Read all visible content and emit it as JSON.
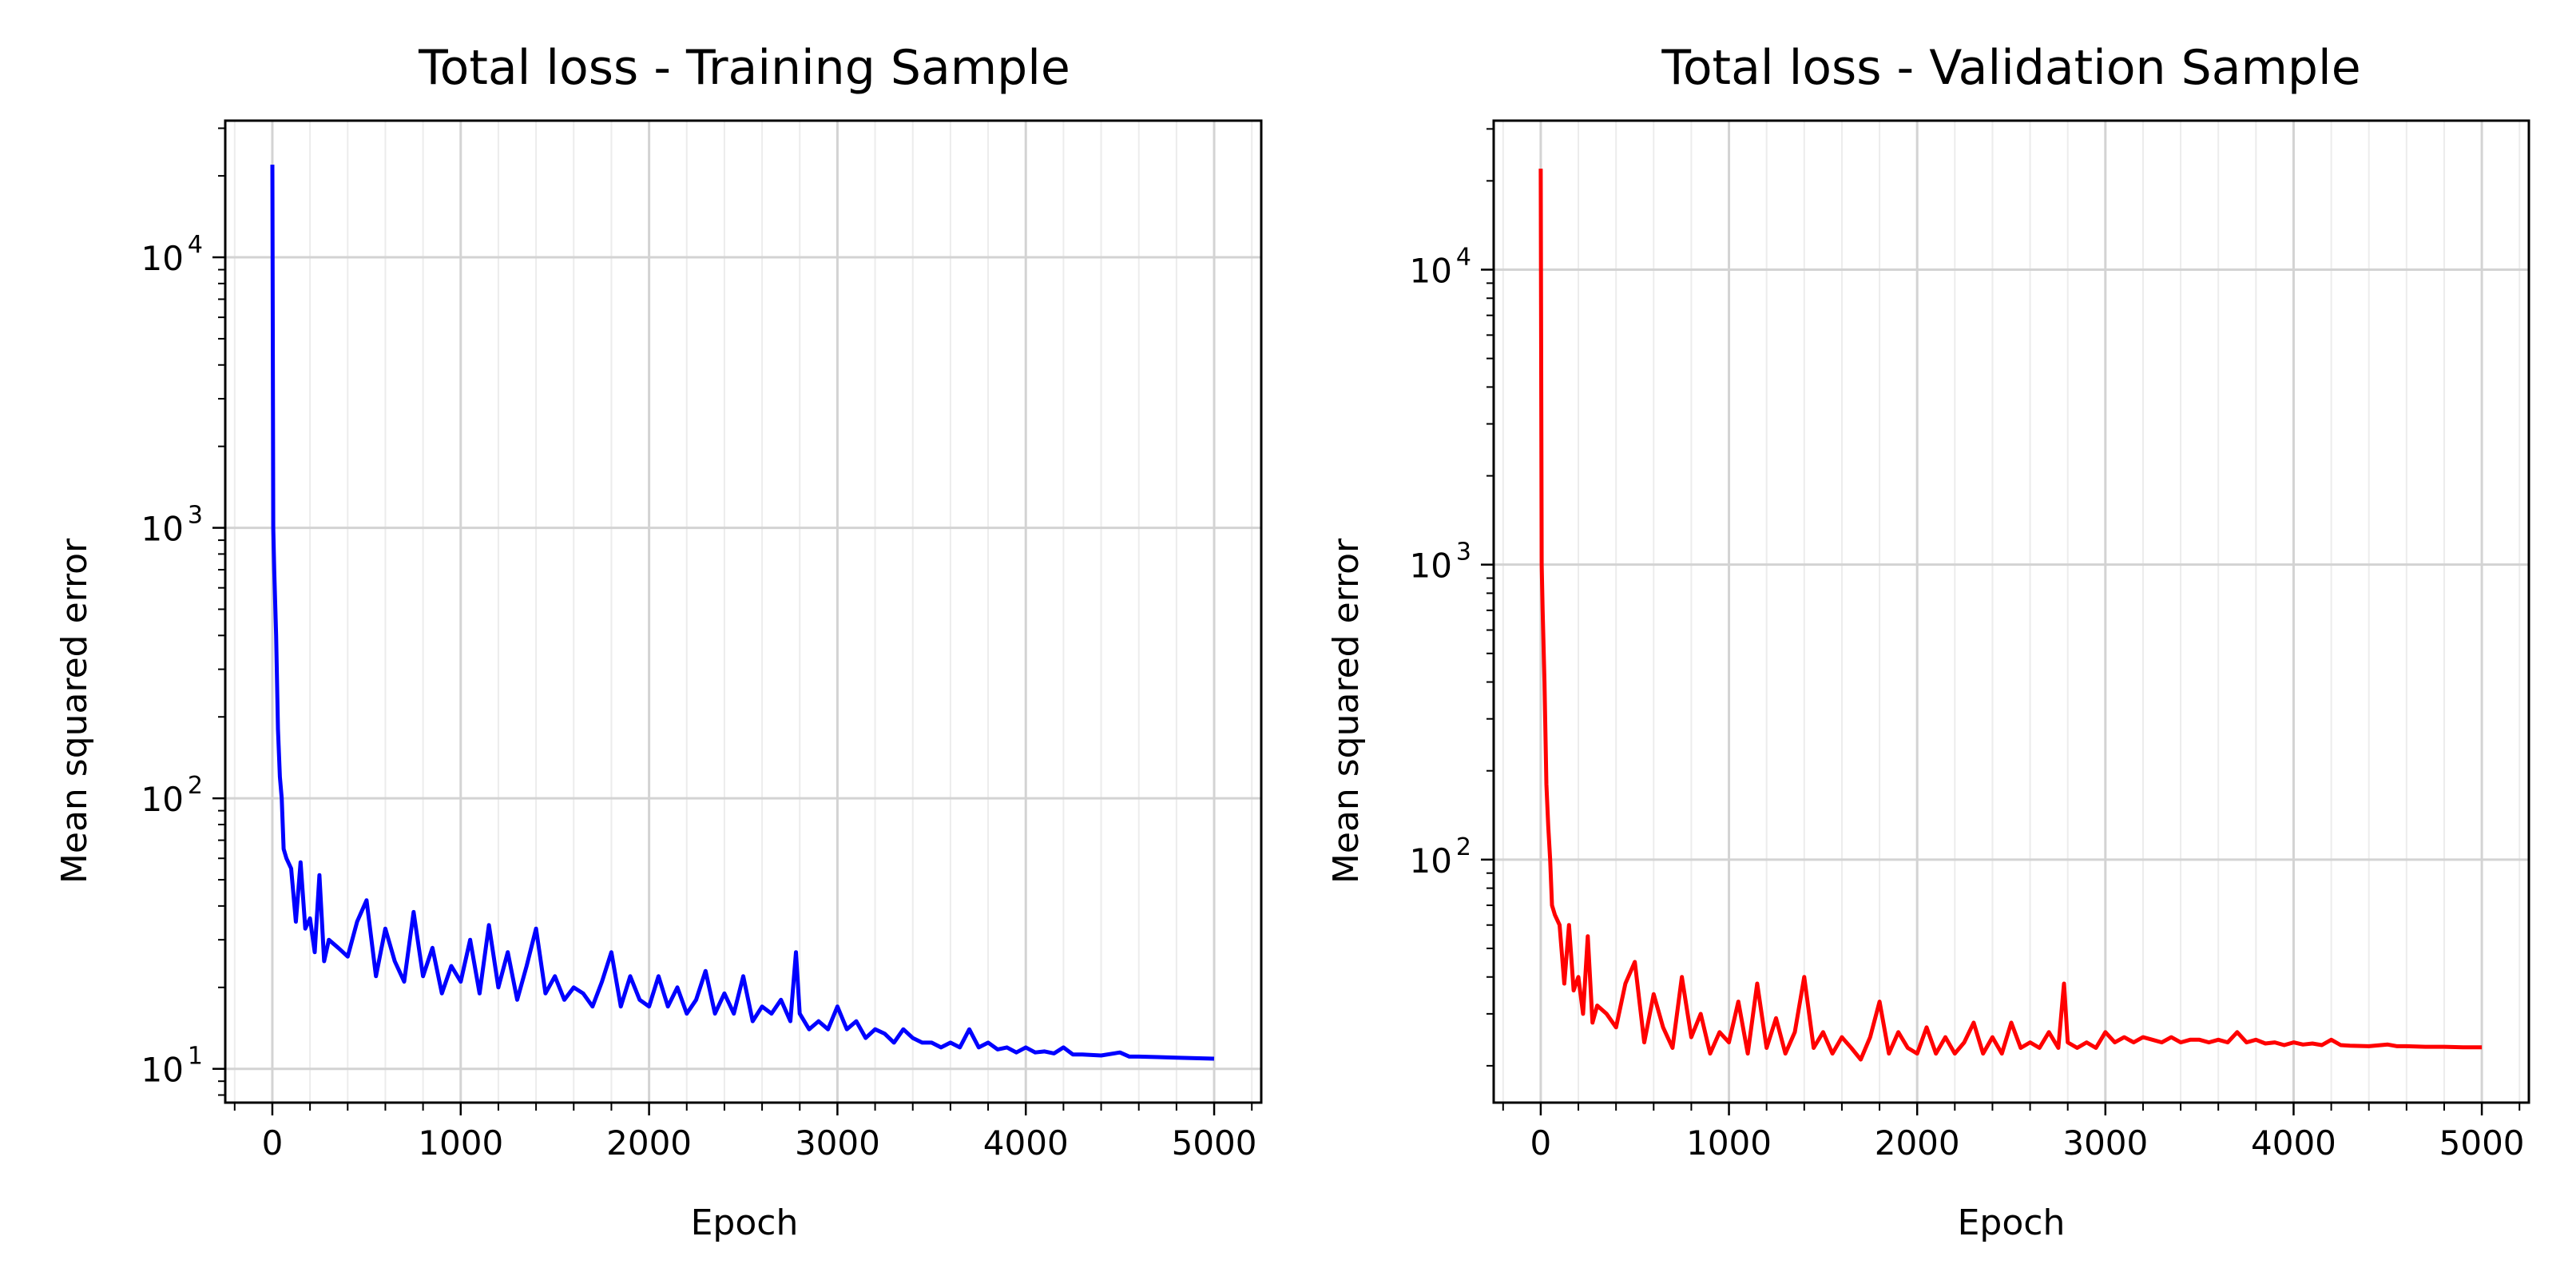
{
  "figure": {
    "charts": [
      {
        "title": "Total loss - Training Sample",
        "xlabel": "Epoch",
        "ylabel": "Mean squared error",
        "color": "#0000ff"
      },
      {
        "title": "Total loss - Validation Sample",
        "xlabel": "Epoch",
        "ylabel": "Mean squared error",
        "color": "#ff0000"
      }
    ]
  },
  "chart_data": [
    {
      "type": "line",
      "title": "Total loss - Training Sample",
      "xlabel": "Epoch",
      "ylabel": "Mean squared error",
      "yscale": "log",
      "xlim": [
        -250,
        5250
      ],
      "ylim": [
        7.5,
        32000
      ],
      "xticks": [
        "0",
        "1000",
        "2000",
        "3000",
        "4000",
        "5000"
      ],
      "yticks": [
        "10^1",
        "10^2",
        "10^3",
        "10^4"
      ],
      "grid": true,
      "series": [
        {
          "color": "#0000ff",
          "x": [
            0,
            5,
            10,
            20,
            30,
            40,
            50,
            60,
            75,
            100,
            125,
            150,
            175,
            200,
            225,
            250,
            275,
            300,
            350,
            400,
            450,
            500,
            550,
            600,
            650,
            700,
            750,
            800,
            850,
            900,
            950,
            1000,
            1050,
            1100,
            1150,
            1200,
            1250,
            1300,
            1350,
            1400,
            1450,
            1500,
            1550,
            1600,
            1650,
            1700,
            1750,
            1800,
            1850,
            1900,
            1950,
            2000,
            2050,
            2100,
            2150,
            2200,
            2250,
            2300,
            2350,
            2400,
            2450,
            2500,
            2550,
            2600,
            2650,
            2700,
            2750,
            2780,
            2800,
            2850,
            2900,
            2950,
            3000,
            3050,
            3100,
            3150,
            3200,
            3250,
            3300,
            3350,
            3400,
            3450,
            3500,
            3550,
            3600,
            3650,
            3700,
            3750,
            3800,
            3850,
            3900,
            3950,
            4000,
            4050,
            4100,
            4150,
            4200,
            4250,
            4300,
            4400,
            4500,
            4550,
            4600,
            4700,
            4800,
            4900,
            5000
          ],
          "y": [
            22000,
            1000,
            700,
            400,
            180,
            120,
            100,
            65,
            60,
            55,
            35,
            58,
            33,
            36,
            27,
            52,
            25,
            30,
            28,
            26,
            35,
            42,
            22,
            33,
            25,
            21,
            38,
            22,
            28,
            19,
            24,
            21,
            30,
            19,
            34,
            20,
            27,
            18,
            24,
            33,
            19,
            22,
            18,
            20,
            19,
            17,
            21,
            27,
            17,
            22,
            18,
            17,
            22,
            17,
            20,
            16,
            18,
            23,
            16,
            19,
            16,
            22,
            15,
            17,
            16,
            18,
            15,
            27,
            16,
            14,
            15,
            14,
            17,
            14,
            15,
            13,
            14,
            13.5,
            12.5,
            14,
            13,
            12.5,
            12.5,
            12,
            12.5,
            12,
            14,
            12,
            12.5,
            11.8,
            12,
            11.5,
            12,
            11.5,
            11.6,
            11.4,
            12,
            11.3,
            11.3,
            11.2,
            11.5,
            11.1,
            11.1,
            11.05,
            11.0,
            10.95,
            10.9
          ]
        }
      ]
    },
    {
      "type": "line",
      "title": "Total loss - Validation Sample",
      "xlabel": "Epoch",
      "ylabel": "Mean squared error",
      "yscale": "log",
      "xlim": [
        -250,
        5250
      ],
      "ylim": [
        15,
        32000
      ],
      "xticks": [
        "0",
        "1000",
        "2000",
        "3000",
        "4000",
        "5000"
      ],
      "yticks": [
        "10^2",
        "10^3",
        "10^4"
      ],
      "grid": true,
      "series": [
        {
          "color": "#ff0000",
          "x": [
            0,
            5,
            10,
            20,
            30,
            40,
            50,
            60,
            75,
            100,
            125,
            150,
            175,
            200,
            225,
            250,
            275,
            300,
            350,
            400,
            450,
            500,
            550,
            600,
            650,
            700,
            750,
            800,
            850,
            900,
            950,
            1000,
            1050,
            1100,
            1150,
            1200,
            1250,
            1300,
            1350,
            1400,
            1450,
            1500,
            1550,
            1600,
            1650,
            1700,
            1750,
            1800,
            1850,
            1900,
            1950,
            2000,
            2050,
            2100,
            2150,
            2200,
            2250,
            2300,
            2350,
            2400,
            2450,
            2500,
            2550,
            2600,
            2650,
            2700,
            2750,
            2780,
            2800,
            2850,
            2900,
            2950,
            3000,
            3050,
            3100,
            3150,
            3200,
            3250,
            3300,
            3350,
            3400,
            3450,
            3500,
            3550,
            3600,
            3650,
            3700,
            3750,
            3800,
            3850,
            3900,
            3950,
            4000,
            4050,
            4100,
            4150,
            4200,
            4250,
            4300,
            4400,
            4500,
            4550,
            4600,
            4700,
            4800,
            4900,
            5000
          ],
          "y": [
            22000,
            1000,
            700,
            400,
            180,
            130,
            100,
            70,
            65,
            60,
            38,
            60,
            36,
            40,
            30,
            55,
            28,
            32,
            30,
            27,
            38,
            45,
            24,
            35,
            27,
            23,
            40,
            25,
            30,
            22,
            26,
            24,
            33,
            22,
            38,
            23,
            29,
            22,
            26,
            40,
            23,
            26,
            22,
            25,
            23,
            21,
            25,
            33,
            22,
            26,
            23,
            22,
            27,
            22,
            25,
            22,
            24,
            28,
            22,
            25,
            22,
            28,
            23,
            24,
            23,
            26,
            23,
            38,
            24,
            23,
            24,
            23,
            26,
            24,
            25,
            24,
            25,
            24.5,
            24,
            25,
            24,
            24.5,
            24.5,
            24,
            24.5,
            24,
            26,
            24,
            24.5,
            23.8,
            24,
            23.5,
            24,
            23.6,
            23.8,
            23.5,
            24.5,
            23.5,
            23.4,
            23.3,
            23.6,
            23.3,
            23.3,
            23.2,
            23.2,
            23.1,
            23.1
          ]
        }
      ]
    }
  ]
}
